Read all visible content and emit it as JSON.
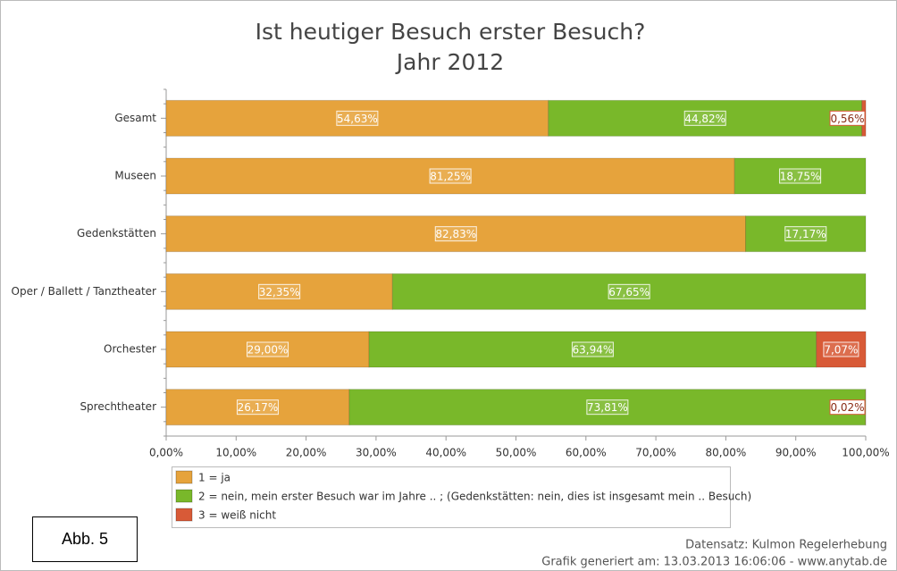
{
  "chart_data": {
    "type": "stacked-bar-horizontal",
    "title": "Ist heutiger Besuch erster Besuch?",
    "subtitle": "Jahr 2012",
    "categories": [
      "Gesamt",
      "Museen",
      "Gedenkstätten",
      "Oper / Ballett / Tanztheater",
      "Orchester",
      "Sprechtheater"
    ],
    "series": [
      {
        "name": "1 = ja",
        "color": "#e6a33c",
        "values": [
          54.63,
          81.25,
          82.83,
          32.35,
          29.0,
          26.17
        ],
        "value_labels": [
          "54,63%",
          "81,25%",
          "82,83%",
          "32,35%",
          "29,00%",
          "26,17%"
        ]
      },
      {
        "name": "2 = nein, mein erster Besuch war im Jahre .. ; (Gedenkstätten: nein, dies ist insgesamt mein .. Besuch)",
        "color": "#79b82a",
        "values": [
          44.82,
          18.75,
          17.17,
          67.65,
          63.94,
          73.81
        ],
        "value_labels": [
          "44,82%",
          "18,75%",
          "17,17%",
          "67,65%",
          "63,94%",
          "73,81%"
        ]
      },
      {
        "name": "3 = weiß nicht",
        "color": "#d85a37",
        "values": [
          0.56,
          null,
          null,
          null,
          7.07,
          0.02
        ],
        "value_labels": [
          "0,56%",
          null,
          null,
          null,
          "7,07%",
          "0,02%"
        ]
      }
    ],
    "xlim": [
      0,
      100
    ],
    "xticks": [
      {
        "value": 0,
        "label": "0,00%"
      },
      {
        "value": 10,
        "label": "10,00%"
      },
      {
        "value": 20,
        "label": "20,00%"
      },
      {
        "value": 30,
        "label": "30,00%"
      },
      {
        "value": 40,
        "label": "40,00%"
      },
      {
        "value": 50,
        "label": "50,00%"
      },
      {
        "value": 60,
        "label": "60,00%"
      },
      {
        "value": 70,
        "label": "70,00%"
      },
      {
        "value": 80,
        "label": "80,00%"
      },
      {
        "value": 90,
        "label": "90,00%"
      },
      {
        "value": 100,
        "label": "100,00%"
      }
    ],
    "grid": false,
    "legend": "bottom",
    "annotations": [
      "Abb. 5",
      "Datensatz: Kulmon Regelerhebung",
      "Grafik generiert am: 13.03.2013 16:06:06 - www.anytab.de"
    ]
  }
}
